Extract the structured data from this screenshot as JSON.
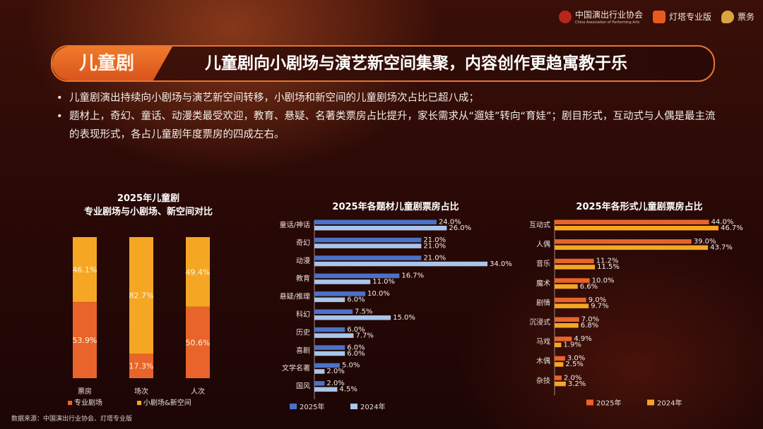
{
  "logos": {
    "cap_name": "中国演出行业协会",
    "cap_sub": "China Association of Performing Arts",
    "dengta": "灯塔专业版",
    "piaowu": "票务"
  },
  "banner": {
    "tag": "儿童剧",
    "headline": "儿童剧向小剧场与演艺新空间集聚，内容创作更趋寓教于乐"
  },
  "bullets": [
    "儿童剧演出持续向小剧场与演艺新空间转移，小剧场和新空间的儿童剧场次占比已超八成；",
    "题材上，奇幻、童话、动漫类最受欢迎，教育、悬疑、名著类票房占比提升，家长需求从“遛娃”转向“育娃”；剧目形式，互动式与人偶是最主流的表现形式，各占儿童剧年度票房的四成左右。"
  ],
  "chart_data": [
    {
      "type": "bar",
      "stacked": true,
      "title": "2025年儿童剧",
      "subtitle": "专业剧场与小剧场、新空间对比",
      "categories": [
        "票房",
        "场次",
        "人次"
      ],
      "series": [
        {
          "name": "专业剧场",
          "values": [
            53.9,
            17.3,
            50.6
          ],
          "labels": [
            "53.9%",
            "17.3%",
            "50.6%"
          ],
          "color": "#e8642a"
        },
        {
          "name": "小剧场&新空间",
          "values": [
            46.1,
            82.7,
            49.4
          ],
          "labels": [
            "46.1%",
            "82.7%",
            "49.4%"
          ],
          "color": "#f5a623"
        }
      ],
      "ylim": [
        0,
        100
      ],
      "legend": "bottom"
    },
    {
      "type": "bar",
      "orientation": "horizontal",
      "title": "2025年各题材儿童剧票房占比",
      "categories": [
        "童话/神话",
        "奇幻",
        "动漫",
        "教育",
        "悬疑/推理",
        "科幻",
        "历史",
        "喜剧",
        "文学名著",
        "国风"
      ],
      "series": [
        {
          "name": "2025年",
          "values": [
            24.0,
            21.0,
            21.0,
            16.7,
            10.0,
            7.5,
            6.0,
            6.0,
            5.0,
            2.0
          ],
          "labels": [
            "24.0%",
            "21.0%",
            "21.0%",
            "16.7%",
            "10.0%",
            "7.5%",
            "6.0%",
            "6.0%",
            "5.0%",
            "2.0%"
          ],
          "color": "#4a72c8"
        },
        {
          "name": "2024年",
          "values": [
            26.0,
            21.0,
            34.0,
            11.0,
            6.0,
            15.0,
            7.7,
            6.0,
            2.0,
            4.5
          ],
          "labels": [
            "26.0%",
            "21.0%",
            "34.0%",
            "11.0%",
            "6.0%",
            "15.0%",
            "7.7%",
            "6.0%",
            "2.0%",
            "4.5%"
          ],
          "color": "#a9c5ea"
        }
      ],
      "xlim": [
        0,
        34
      ],
      "legend": "bottom"
    },
    {
      "type": "bar",
      "orientation": "horizontal",
      "title": "2025年各形式儿童剧票房占比",
      "categories": [
        "互动式",
        "人偶",
        "音乐",
        "魔术",
        "剧情",
        "沉浸式",
        "马戏",
        "木偶",
        "杂技"
      ],
      "series": [
        {
          "name": "2025年",
          "values": [
            44.0,
            39.0,
            11.2,
            10.0,
            9.0,
            7.0,
            4.9,
            3.0,
            2.0
          ],
          "labels": [
            "44.0%",
            "39.0%",
            "11.2%",
            "10.0%",
            "9.0%",
            "7.0%",
            "4.9%",
            "3.0%",
            "2.0%"
          ],
          "color": "#e8642a"
        },
        {
          "name": "2024年",
          "values": [
            46.7,
            43.7,
            11.5,
            6.6,
            9.7,
            6.8,
            1.9,
            2.5,
            3.2
          ],
          "labels": [
            "46.7%",
            "43.7%",
            "11.5%",
            "6.6%",
            "9.7%",
            "6.8%",
            "1.9%",
            "2.5%",
            "3.2%"
          ],
          "color": "#f5a623"
        }
      ],
      "xlim": [
        0,
        46.7
      ],
      "legend": "bottom"
    }
  ],
  "source": "数据来源：中国演出行业协会、灯塔专业版"
}
